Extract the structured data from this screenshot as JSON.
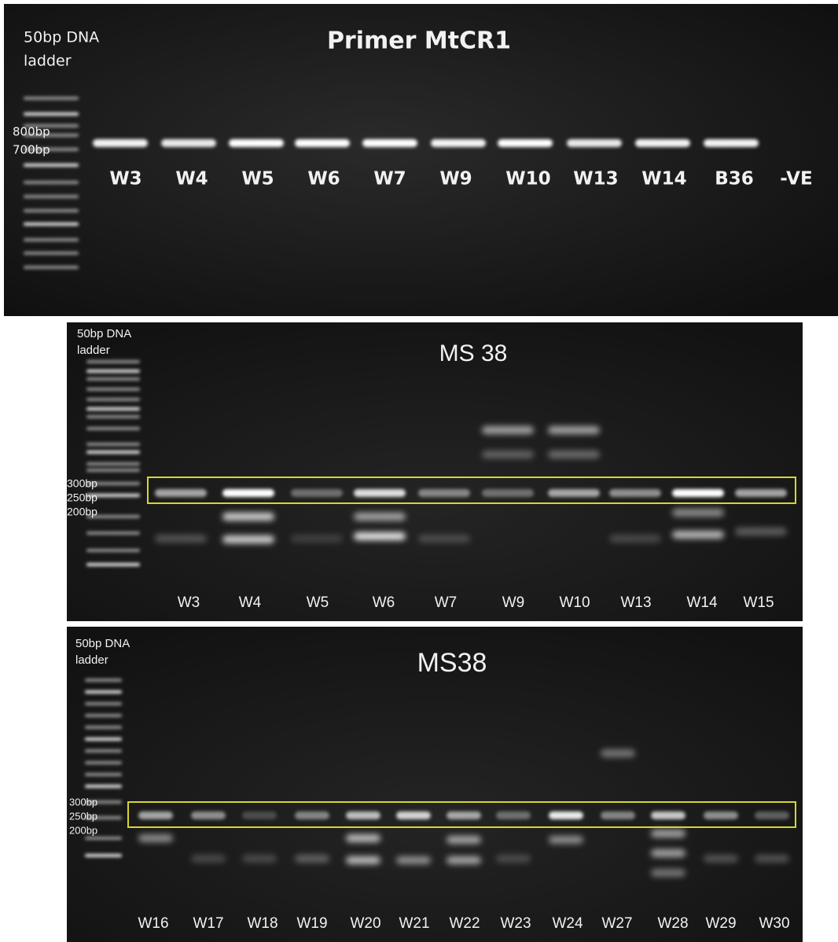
{
  "panels": [
    {
      "title": "Primer MtCR1",
      "ladder": [
        "50bp DNA",
        "ladder"
      ],
      "markers": [
        "800bp",
        "700bp"
      ],
      "lanes": [
        "W3",
        "W4",
        "W5",
        "W6",
        "W7",
        "W9",
        "W10",
        "W13",
        "W14",
        "B36",
        "-VE"
      ]
    },
    {
      "title": "MS 38",
      "ladder": [
        "50bp DNA",
        "ladder"
      ],
      "markers": [
        "300bp",
        "250bp",
        "200bp"
      ],
      "lanes": [
        "W3",
        "W4",
        "W5",
        "W6",
        "W7",
        "W9",
        "W10",
        "W13",
        "W14",
        "W15"
      ]
    },
    {
      "title": "MS38",
      "ladder": [
        "50bp DNA",
        "ladder"
      ],
      "markers": [
        "300bp",
        "250bp",
        "200bp"
      ],
      "lanes": [
        "W16",
        "W17",
        "W18",
        "W19",
        "W20",
        "W21",
        "W22",
        "W23",
        "W24",
        "W27",
        "W28",
        "W29",
        "W30"
      ]
    }
  ]
}
